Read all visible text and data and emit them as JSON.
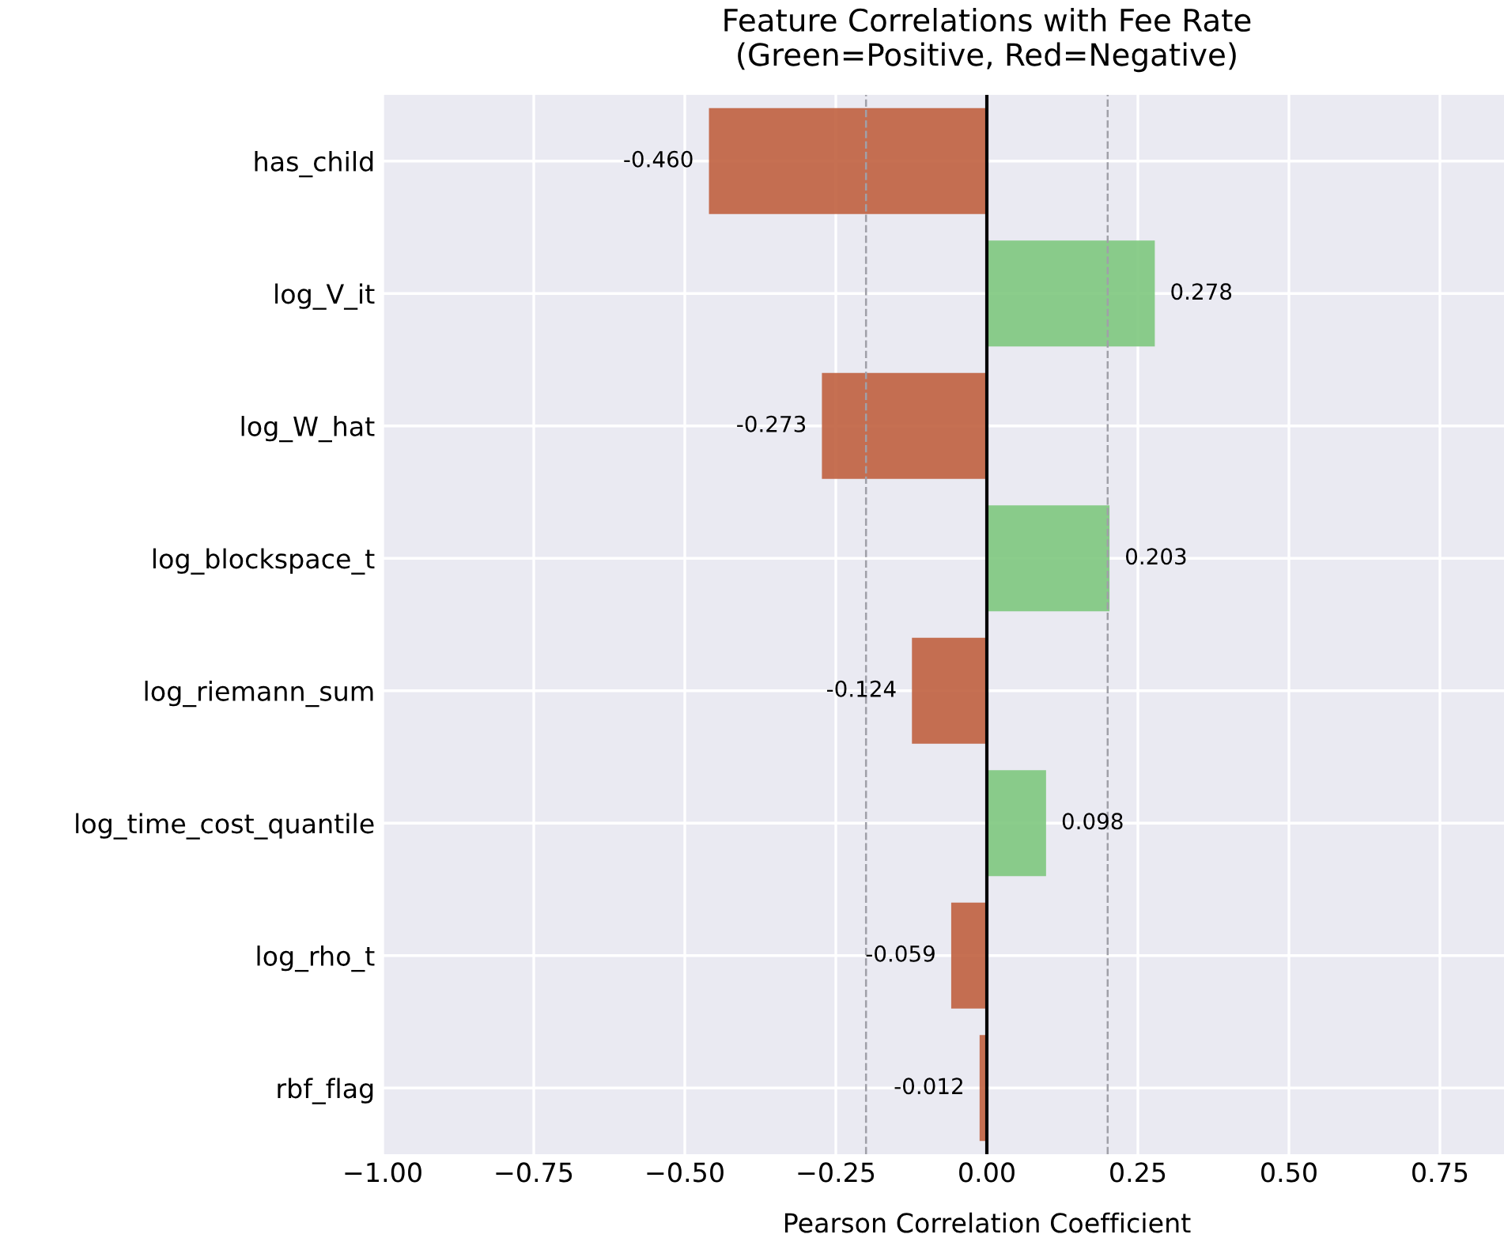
{
  "chart_data": {
    "type": "bar",
    "orientation": "horizontal",
    "title": "Feature Correlations with Fee Rate\n(Green=Positive, Red=Negative)",
    "xlabel": "Pearson Correlation Coefficient",
    "categories": [
      "has_child",
      "log_V_it",
      "log_W_hat",
      "log_blockspace_t",
      "log_riemann_sum",
      "log_time_cost_quantile",
      "log_rho_t",
      "rbf_flag"
    ],
    "values": [
      -0.46,
      0.278,
      -0.273,
      0.203,
      -0.124,
      0.098,
      -0.059,
      -0.012
    ],
    "value_labels": [
      "-0.460",
      "0.278",
      "-0.273",
      "0.203",
      "-0.124",
      "0.098",
      "-0.059",
      "-0.012"
    ],
    "colors": [
      "#c0603f",
      "#7ec87e",
      "#c0603f",
      "#7ec87e",
      "#c0603f",
      "#7ec87e",
      "#c0603f",
      "#c0603f"
    ],
    "xlim": [
      -1.0,
      1.0
    ],
    "xticks": [
      {
        "value": -1.0,
        "label": "−1.00"
      },
      {
        "value": -0.75,
        "label": "−0.75"
      },
      {
        "value": -0.5,
        "label": "−0.50"
      },
      {
        "value": -0.25,
        "label": "−0.25"
      },
      {
        "value": 0.0,
        "label": "0.00"
      },
      {
        "value": 0.25,
        "label": "0.25"
      },
      {
        "value": 0.5,
        "label": "0.50"
      },
      {
        "value": 0.75,
        "label": "0.75"
      }
    ],
    "ref_lines": [
      {
        "axis": "x",
        "value": -0.2,
        "color": "#a0a0a8",
        "line_style": "dashed"
      },
      {
        "axis": "x",
        "value": 0.2,
        "color": "#a0a0a8",
        "line_style": "dashed"
      },
      {
        "axis": "x",
        "value": 0.0,
        "color": "#000000",
        "line_style": "solid"
      }
    ],
    "grid": true
  }
}
